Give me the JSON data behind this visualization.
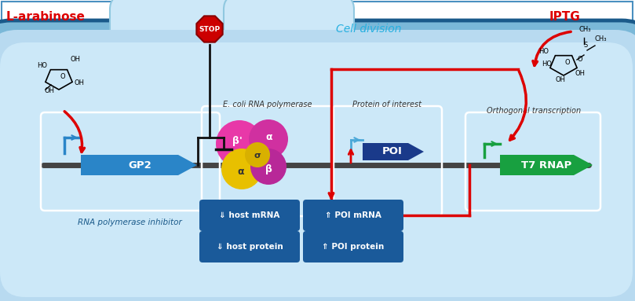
{
  "bg": "#ffffff",
  "fig_border": "#4a90c0",
  "cell_outer_fill": "#7ab8d8",
  "cell_outer_border": "#1a5a8a",
  "cell_inner_fill": "#b8daf0",
  "cell_inner2_fill": "#cce8f8",
  "dna_color": "#444444",
  "gp2_color": "#2a85c8",
  "t7_color": "#18a040",
  "poi_color": "#1a3a8a",
  "box_fill": "#1a5a9a",
  "box_text": "#ffffff",
  "red": "#dd0000",
  "black": "#111111",
  "white": "#ffffff",
  "stop_red": "#cc0000",
  "magenta1": "#e838a8",
  "magenta2": "#d030a0",
  "magenta3": "#b82898",
  "yellow1": "#e8c000",
  "yellow2": "#d8b000",
  "cyan_label": "#28b0e0",
  "label_blue": "#1a5a8a",
  "arabinose_label": "L-arabinose",
  "iptg_label": "IPTG",
  "cell_div_label": "Cell division",
  "ecoli_label": "E. coli RNA polymerase",
  "poi_label": "Protein of interest",
  "orth_label": "Orthogonal transcription",
  "rna_inh_label": "RNA polymerase inhibitor",
  "gp2_label": "GP2",
  "t7_label": "T7 RNAP",
  "poi_arrow_label": "POI",
  "b1": "⇓ host mRNA",
  "b2": "⇓ host protein",
  "b3": "⇑ POI mRNA",
  "b4": "⇑ POI protein"
}
